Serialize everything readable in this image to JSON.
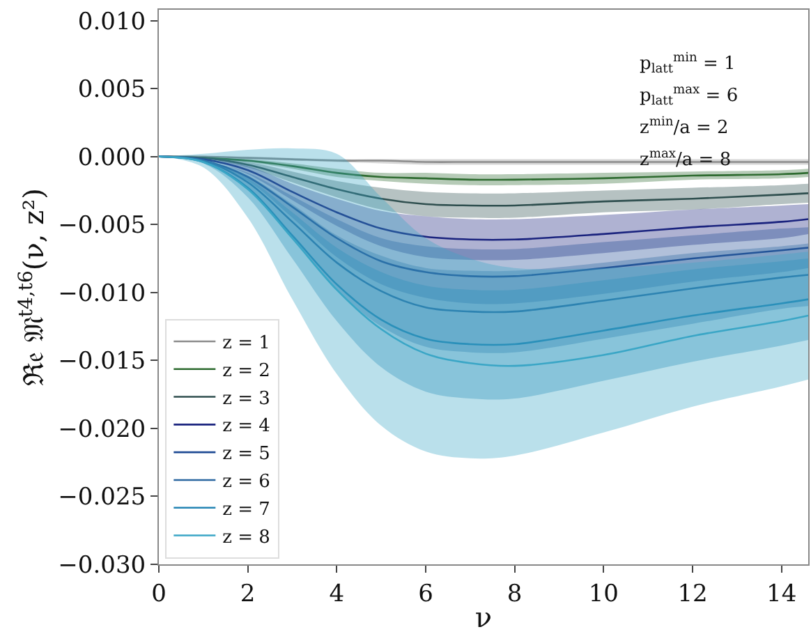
{
  "chart_data": {
    "type": "line",
    "xlabel": "ν",
    "ylabel": "ℜ𝔢 𝔐$^{t4,t6}$(ν, z²)",
    "x": [
      0,
      1,
      2,
      3,
      4,
      5,
      6,
      7,
      8,
      10,
      12,
      14,
      14.6
    ],
    "xlim": [
      0,
      14.6
    ],
    "xticks": [
      0,
      2,
      4,
      6,
      8,
      10,
      12,
      14
    ],
    "ylim": [
      -0.03,
      0.0108
    ],
    "yticks": [
      {
        "value": 0.01,
        "label": "0.010"
      },
      {
        "value": 0.005,
        "label": "0.005"
      },
      {
        "value": 0,
        "label": "0.000"
      },
      {
        "value": -0.005,
        "label": "−0.005"
      },
      {
        "value": -0.01,
        "label": "−0.010"
      },
      {
        "value": -0.015,
        "label": "−0.015"
      },
      {
        "value": -0.02,
        "label": "−0.020"
      },
      {
        "value": -0.025,
        "label": "−0.025"
      },
      {
        "value": -0.03,
        "label": "−0.030"
      }
    ],
    "legend": "bottom left",
    "annotations": [
      "p$_{latt}$$^{min}$ = 1",
      "p$_{latt}$$^{max}$ = 6",
      "z$^{min}$/a = 2",
      "z$^{max}$/a = 8"
    ],
    "series": [
      {
        "name": "z = 1",
        "color": "#8c8c8c",
        "values": [
          0,
          0,
          -0.0001,
          -0.0002,
          -0.0003,
          -0.0003,
          -0.0004,
          -0.0004,
          -0.0004,
          -0.0004,
          -0.0004,
          -0.0004,
          -0.0004
        ],
        "lower": [
          0,
          0,
          -0.0002,
          -0.0003,
          -0.0004,
          -0.0005,
          -0.0006,
          -0.0006,
          -0.0006,
          -0.0006,
          -0.0006,
          -0.0006,
          -0.0006
        ],
        "upper": [
          0,
          0,
          0,
          -0.0001,
          -0.0002,
          -0.0002,
          -0.0002,
          -0.0002,
          -0.0002,
          -0.0002,
          -0.0002,
          -0.0002,
          -0.0002
        ]
      },
      {
        "name": "z = 2",
        "color": "#2e6b30",
        "values": [
          0,
          -0.0001,
          -0.0003,
          -0.0007,
          -0.0012,
          -0.0015,
          -0.0016,
          -0.0017,
          -0.0017,
          -0.0016,
          -0.0014,
          -0.0013,
          -0.0012
        ],
        "lower": [
          0,
          -0.0001,
          -0.0004,
          -0.0009,
          -0.0015,
          -0.0018,
          -0.002,
          -0.0021,
          -0.0021,
          -0.002,
          -0.0017,
          -0.0016,
          -0.0015
        ],
        "upper": [
          0,
          -0.0001,
          -0.0002,
          -0.0005,
          -0.0009,
          -0.0012,
          -0.0012,
          -0.0013,
          -0.0013,
          -0.0012,
          -0.0011,
          -0.001,
          -0.0009
        ]
      },
      {
        "name": "z = 3",
        "color": "#2f4f4f",
        "values": [
          0,
          -0.0001,
          -0.0006,
          -0.0015,
          -0.0024,
          -0.0031,
          -0.0035,
          -0.0036,
          -0.0036,
          -0.0033,
          -0.0031,
          -0.0028,
          -0.0027
        ],
        "lower": [
          0,
          -0.0001,
          -0.0008,
          -0.0019,
          -0.003,
          -0.0039,
          -0.0044,
          -0.0045,
          -0.0045,
          -0.0041,
          -0.0039,
          -0.0035,
          -0.0034
        ],
        "upper": [
          0,
          -0.0001,
          -0.0004,
          -0.0011,
          -0.0018,
          -0.0023,
          -0.0026,
          -0.0027,
          -0.0027,
          -0.0025,
          -0.0023,
          -0.0021,
          -0.002
        ]
      },
      {
        "name": "z = 4",
        "color": "#1a237e",
        "values": [
          0,
          -0.0002,
          -0.001,
          -0.0026,
          -0.0041,
          -0.0053,
          -0.0059,
          -0.0061,
          -0.0061,
          -0.0057,
          -0.0052,
          -0.0048,
          -0.0046
        ],
        "lower": [
          0,
          -0.0002,
          -0.0013,
          -0.0032,
          -0.0051,
          -0.0066,
          -0.0074,
          -0.0076,
          -0.0076,
          -0.0071,
          -0.0065,
          -0.006,
          -0.0057
        ],
        "upper": [
          0,
          -0.0002,
          -0.0007,
          -0.002,
          -0.0031,
          -0.004,
          -0.0044,
          -0.0046,
          -0.0046,
          -0.0043,
          -0.0039,
          -0.0036,
          -0.0035
        ]
      },
      {
        "name": "z = 5",
        "color": "#1f4a94",
        "values": [
          0,
          -0.0003,
          -0.0015,
          -0.0037,
          -0.006,
          -0.0077,
          -0.0085,
          -0.0088,
          -0.0088,
          -0.0082,
          -0.0075,
          -0.0069,
          -0.0067
        ],
        "lower": [
          0,
          -0.0003,
          -0.0018,
          -0.0045,
          -0.0074,
          -0.0094,
          -0.0104,
          -0.0108,
          -0.0108,
          -0.0101,
          -0.0092,
          -0.0085,
          -0.0082
        ],
        "upper": [
          0,
          -0.0003,
          -0.0012,
          -0.0029,
          -0.0046,
          -0.006,
          -0.0066,
          -0.0068,
          -0.0068,
          -0.0063,
          -0.0058,
          -0.0053,
          -0.0052
        ]
      },
      {
        "name": "z = 6",
        "color": "#2a66a0",
        "values": [
          0,
          -0.0003,
          -0.0019,
          -0.0048,
          -0.0078,
          -0.0099,
          -0.0111,
          -0.0114,
          -0.0114,
          -0.0106,
          -0.0097,
          -0.0089,
          -0.0087
        ],
        "lower": [
          0,
          -0.0004,
          -0.0024,
          -0.0061,
          -0.0098,
          -0.0125,
          -0.014,
          -0.0144,
          -0.0144,
          -0.0134,
          -0.0123,
          -0.0112,
          -0.011
        ],
        "upper": [
          0,
          -0.0002,
          -0.0014,
          -0.0035,
          -0.0058,
          -0.0073,
          -0.0082,
          -0.0084,
          -0.0084,
          -0.0078,
          -0.0071,
          -0.0066,
          -0.0064
        ]
      },
      {
        "name": "z = 7",
        "color": "#2384b4",
        "values": [
          0,
          -0.0004,
          -0.0023,
          -0.0058,
          -0.0094,
          -0.012,
          -0.0134,
          -0.0138,
          -0.0138,
          -0.0128,
          -0.0117,
          -0.0108,
          -0.0105
        ],
        "lower": [
          0,
          -0.0005,
          -0.003,
          -0.0075,
          -0.0121,
          -0.0155,
          -0.0173,
          -0.0178,
          -0.0178,
          -0.0165,
          -0.0151,
          -0.0139,
          -0.0135
        ],
        "upper": [
          0,
          -0.0003,
          -0.0016,
          -0.0041,
          -0.0067,
          -0.0085,
          -0.0095,
          -0.0098,
          -0.0098,
          -0.0091,
          -0.0083,
          -0.0077,
          -0.0075
        ]
      },
      {
        "name": "z = 8",
        "color": "#3aa6c6",
        "values": [
          0,
          -0.0004,
          -0.0024,
          -0.006,
          -0.0098,
          -0.0127,
          -0.0145,
          -0.0152,
          -0.0154,
          -0.0146,
          -0.0132,
          -0.0121,
          -0.0117
        ],
        "lower": [
          0,
          -0.0008,
          -0.0045,
          -0.0105,
          -0.016,
          -0.0198,
          -0.0217,
          -0.0222,
          -0.022,
          -0.0203,
          -0.0184,
          -0.0169,
          -0.0164
        ],
        "upper": [
          0,
          0.0002,
          0.0005,
          0.0006,
          0.0002,
          -0.003,
          -0.006,
          -0.0075,
          -0.0082,
          -0.0082,
          -0.0078,
          -0.0072,
          -0.007
        ]
      }
    ]
  }
}
